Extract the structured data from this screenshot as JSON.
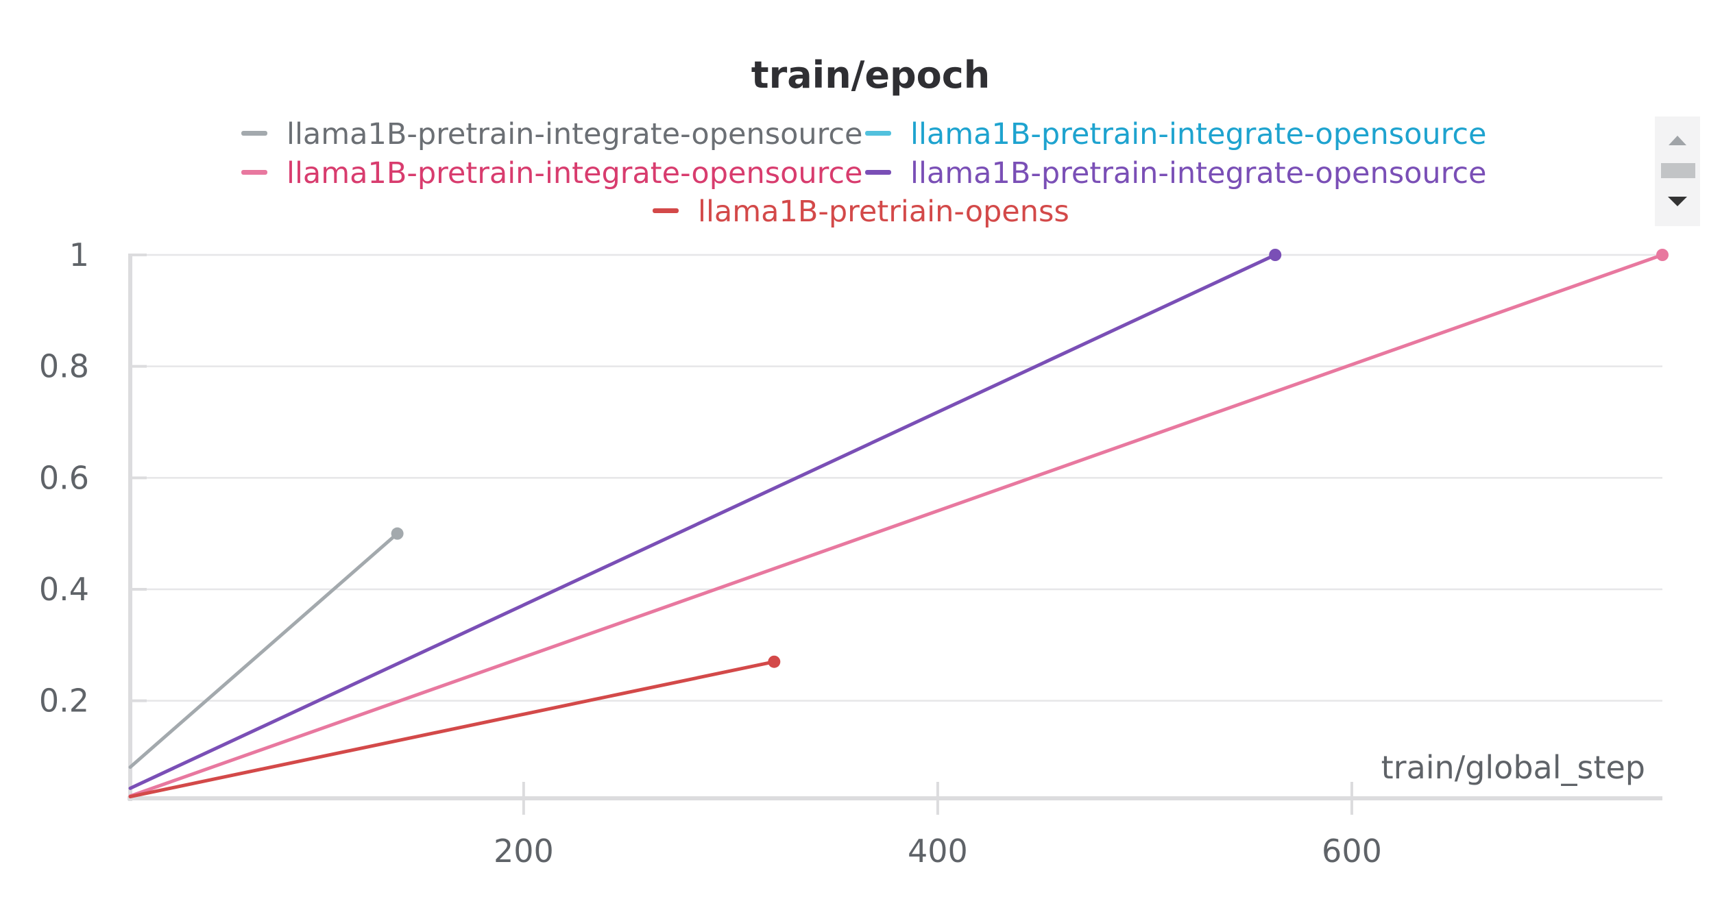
{
  "chart_data": {
    "type": "line",
    "title": "train/epoch",
    "xlabel": "train/global_step",
    "ylabel": "",
    "xlim": [
      10,
      750
    ],
    "ylim": [
      0.025,
      1
    ],
    "xticks": [
      200,
      400,
      600
    ],
    "yticks": [
      0.2,
      0.4,
      0.6,
      0.8,
      1
    ],
    "ytick_labels": [
      "0.2",
      "0.4",
      "0.6",
      "0.8",
      "1"
    ],
    "xtick_labels": [
      "200",
      "400",
      "600"
    ],
    "grid": "horizontal",
    "legend_position": "top",
    "series": [
      {
        "name": "llama1B-pretrain-integrate-opensource",
        "color": "#a3a9ad",
        "x": [
          10,
          139
        ],
        "y": [
          0.081,
          0.5
        ],
        "end_marker": true,
        "label_color": "#6b6f74"
      },
      {
        "name": "llama1B-pretrain-integrate-opensource",
        "color": "#52c1dd",
        "x": [],
        "y": [],
        "end_marker": false,
        "label_color": "#1ea3cf"
      },
      {
        "name": "llama1B-pretrain-integrate-opensource",
        "color": "#e8789f",
        "x": [
          10,
          750
        ],
        "y": [
          0.029,
          1
        ],
        "end_marker": true,
        "label_color": "#d83c6e"
      },
      {
        "name": "llama1B-pretrain-integrate-opensource",
        "color": "#7a4fb6",
        "x": [
          10,
          563
        ],
        "y": [
          0.043,
          1
        ],
        "end_marker": true,
        "label_color": "#7a4fb6"
      },
      {
        "name": "llama1B-pretriain-openss",
        "color": "#d34949",
        "x": [
          10,
          321
        ],
        "y": [
          0.028,
          0.27
        ],
        "end_marker": true,
        "label_color": "#d34949"
      }
    ]
  },
  "scroll": {
    "up_icon": "triangle-up-icon",
    "down_icon": "triangle-down-icon"
  }
}
